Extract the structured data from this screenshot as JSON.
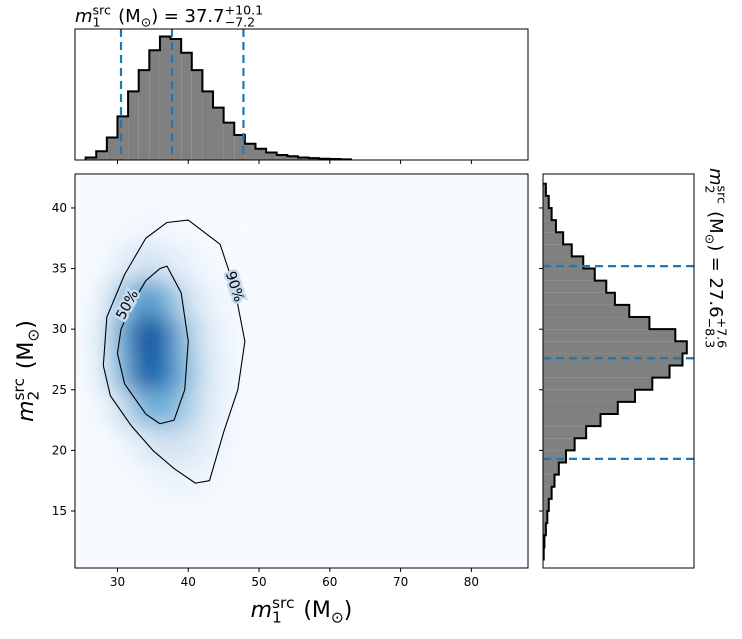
{
  "chart_data": [
    {
      "type": "histogram",
      "title": {
        "symbol": "m",
        "sup": "src",
        "sub": "1",
        "unit": "(M",
        "unit_sub": "⊙",
        "unit_close": ")",
        "estimate": "= 37.7",
        "plus": "+10.1",
        "minus": "−7.2"
      },
      "bins": [
        25.5,
        27,
        28.5,
        30,
        31.5,
        33,
        34.5,
        36,
        37.5,
        39,
        40.5,
        42,
        43.5,
        45,
        46.5,
        48,
        49.5,
        51,
        52.5,
        54,
        55.5,
        57,
        58.5,
        60,
        61.5,
        63
      ],
      "counts": [
        0.02,
        0.07,
        0.18,
        0.35,
        0.55,
        0.72,
        0.88,
        0.99,
        0.97,
        0.86,
        0.72,
        0.55,
        0.42,
        0.3,
        0.2,
        0.13,
        0.09,
        0.06,
        0.04,
        0.03,
        0.02,
        0.015,
        0.01,
        0.008,
        0.005
      ],
      "color": "#808080",
      "xlim": [
        24,
        88
      ],
      "ylim": [
        0,
        1.05
      ],
      "xticks": [
        30,
        40,
        50,
        60,
        70,
        80
      ],
      "quantiles": [
        30.5,
        37.7,
        47.8
      ],
      "quantile_color": "#1f77b4"
    },
    {
      "type": "density",
      "xlabel": {
        "symbol": "m",
        "sup": "src",
        "sub": "1",
        "unit": "(M",
        "unit_sub": "⊙",
        "unit_close": ")"
      },
      "ylabel": {
        "symbol": "m",
        "sup": "src",
        "sub": "2",
        "unit": "(M",
        "unit_sub": "⊙",
        "unit_close": ")"
      },
      "xbins": [
        26,
        29,
        32,
        35,
        38,
        41,
        44,
        47,
        50
      ],
      "ybins": [
        16,
        19,
        22,
        25,
        28,
        31,
        34,
        37,
        40
      ],
      "z": [
        [
          0,
          0,
          0.02,
          0.05,
          0.06,
          0.04,
          0.01,
          0
        ],
        [
          0,
          0.03,
          0.12,
          0.2,
          0.18,
          0.1,
          0.03,
          0
        ],
        [
          0.03,
          0.2,
          0.45,
          0.5,
          0.35,
          0.15,
          0.04,
          0.01
        ],
        [
          0.1,
          0.45,
          0.9,
          0.75,
          0.45,
          0.18,
          0.05,
          0.01
        ],
        [
          0.12,
          0.5,
          1.0,
          0.8,
          0.4,
          0.15,
          0.04,
          0
        ],
        [
          0.06,
          0.35,
          0.6,
          0.5,
          0.25,
          0.08,
          0.02,
          0
        ],
        [
          0.01,
          0.1,
          0.2,
          0.15,
          0.08,
          0.02,
          0,
          0
        ],
        [
          0,
          0.01,
          0.03,
          0.03,
          0.01,
          0,
          0,
          0
        ]
      ],
      "colormap": [
        "#f7fbff",
        "#c6dbef",
        "#6baed6",
        "#2171b5",
        "#08519c"
      ],
      "contours": [
        {
          "name": "50%",
          "x": [
            37,
            39,
            40,
            39.5,
            38,
            36,
            34,
            31,
            30,
            30.5,
            32,
            34,
            36
          ],
          "y": [
            35.2,
            33,
            29,
            25,
            22.5,
            22.2,
            23,
            25.5,
            28,
            30,
            32,
            34,
            35
          ]
        },
        {
          "name": "90%",
          "x": [
            40,
            44.5,
            46.5,
            48,
            47,
            45,
            43,
            41,
            38,
            35,
            32,
            29,
            28,
            28.5,
            31,
            34,
            37
          ],
          "y": [
            39,
            37,
            33.5,
            29,
            25,
            21.5,
            17.5,
            17.3,
            18.5,
            20,
            22,
            24.5,
            27,
            31,
            34.5,
            37.5,
            38.8
          ]
        }
      ],
      "contour_color": "#000000",
      "xlim": [
        24,
        88
      ],
      "ylim": [
        10.3,
        42.8
      ],
      "xticks": [
        30,
        40,
        50,
        60,
        70,
        80
      ],
      "yticks": [
        15,
        20,
        25,
        30,
        35,
        40
      ]
    },
    {
      "type": "histogram",
      "orientation": "horizontal",
      "title": {
        "symbol": "m",
        "sup": "src",
        "sub": "2",
        "unit": "(M",
        "unit_sub": "⊙",
        "unit_close": ")",
        "estimate": "= 27.6",
        "plus": "+7.6",
        "minus": "−8.3"
      },
      "bins": [
        11,
        12,
        13,
        14,
        15,
        16,
        17,
        18,
        19,
        20,
        21,
        22,
        23,
        24,
        25,
        26,
        27,
        28,
        29,
        30,
        31,
        32,
        33,
        34,
        35,
        36,
        37,
        38,
        39,
        40,
        41,
        42
      ],
      "counts": [
        0.005,
        0.01,
        0.02,
        0.03,
        0.04,
        0.06,
        0.08,
        0.11,
        0.16,
        0.22,
        0.3,
        0.4,
        0.52,
        0.64,
        0.76,
        0.88,
        0.97,
        1.0,
        0.92,
        0.74,
        0.6,
        0.5,
        0.44,
        0.36,
        0.28,
        0.2,
        0.14,
        0.09,
        0.06,
        0.04,
        0.02
      ],
      "color": "#808080",
      "ylim": [
        10.3,
        42.8
      ],
      "xlim": [
        0,
        1.05
      ],
      "yticks": [
        15,
        20,
        25,
        30,
        35,
        40
      ],
      "quantiles": [
        19.3,
        27.6,
        35.2
      ],
      "quantile_color": "#1f77b4"
    }
  ]
}
